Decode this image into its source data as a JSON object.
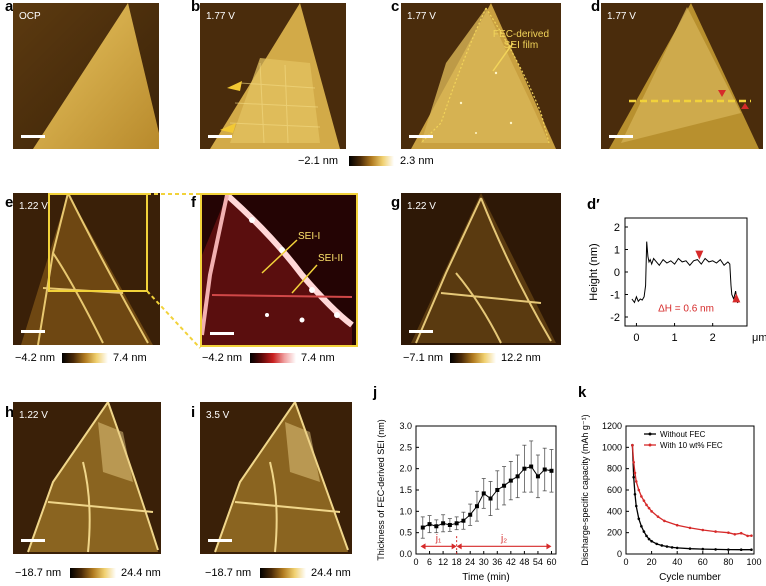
{
  "panels": {
    "a": {
      "letter": "a",
      "label": "OCP"
    },
    "b": {
      "letter": "b",
      "label": "1.77 V"
    },
    "c": {
      "letter": "c",
      "label": "1.77 V",
      "annotation_line1": "FEC-derived",
      "annotation_line2": "SEI film"
    },
    "d": {
      "letter": "d",
      "label": "1.77 V"
    },
    "e": {
      "letter": "e",
      "label": "1.22 V"
    },
    "f": {
      "letter": "f",
      "sei1": "SEI-I",
      "sei2": "SEI-II"
    },
    "g": {
      "letter": "g",
      "label": "1.22 V"
    },
    "dprime": {
      "letter": "d′"
    },
    "h": {
      "letter": "h",
      "label": "1.22 V"
    },
    "i": {
      "letter": "i",
      "label": "3.5 V"
    },
    "j": {
      "letter": "j"
    },
    "k": {
      "letter": "k"
    }
  },
  "colorbars": {
    "top": {
      "min": "−2.1 nm",
      "max": "2.3 nm"
    },
    "e": {
      "min": "−4.2 nm",
      "max": "7.4 nm"
    },
    "f": {
      "min": "−4.2 nm",
      "max": "7.4 nm"
    },
    "g": {
      "min": "−7.1 nm",
      "max": "12.2 nm"
    },
    "h": {
      "min": "−18.7 nm",
      "max": "24.4 nm"
    },
    "i": {
      "min": "−18.7 nm",
      "max": "24.4 nm"
    }
  },
  "chart_data": [
    {
      "id": "dprime",
      "type": "line",
      "title": "",
      "xlabel": "μm",
      "ylabel": "Height (nm)",
      "xlim": [
        -0.3,
        2.9
      ],
      "ylim": [
        -2.4,
        2.4
      ],
      "xticks": [
        0,
        1,
        2
      ],
      "yticks": [
        -2,
        -1,
        0,
        1,
        2
      ],
      "annotation": "ΔH = 0.6 nm",
      "x": [
        -0.12,
        -0.05,
        0.0,
        0.05,
        0.1,
        0.15,
        0.2,
        0.24,
        0.27,
        0.3,
        0.33,
        0.36,
        0.4,
        0.45,
        0.5,
        0.6,
        0.7,
        0.8,
        0.9,
        1.0,
        1.1,
        1.2,
        1.3,
        1.4,
        1.5,
        1.6,
        1.7,
        1.8,
        1.9,
        2.0,
        2.1,
        2.2,
        2.3,
        2.4,
        2.45,
        2.48,
        2.5,
        2.55,
        2.6,
        2.65,
        2.7
      ],
      "y": [
        -1.2,
        -1.35,
        -1.1,
        -1.3,
        -1.2,
        -1.25,
        -1.1,
        -0.6,
        1.35,
        0.7,
        0.45,
        0.55,
        0.35,
        0.6,
        0.5,
        0.3,
        0.55,
        0.4,
        0.5,
        0.35,
        0.6,
        0.45,
        0.5,
        0.3,
        0.5,
        0.55,
        0.35,
        0.6,
        0.45,
        0.5,
        0.4,
        0.55,
        0.3,
        0.45,
        0.35,
        -0.6,
        -1.0,
        -1.2,
        -0.85,
        -1.35,
        -1.3
      ]
    },
    {
      "id": "j",
      "type": "line",
      "xlabel": "Time (min)",
      "ylabel": "Thickness of FEC-derived SEI (nm)",
      "xlim": [
        0,
        62
      ],
      "ylim": [
        0,
        3.0
      ],
      "xticks": [
        0,
        6,
        12,
        18,
        24,
        30,
        36,
        42,
        48,
        54,
        60
      ],
      "yticks": [
        0.0,
        0.5,
        1.0,
        1.5,
        2.0,
        2.5,
        3.0
      ],
      "x": [
        3,
        6,
        9,
        12,
        15,
        18,
        21,
        24,
        27,
        30,
        33,
        36,
        39,
        42,
        45,
        48,
        51,
        54,
        57,
        60
      ],
      "y": [
        0.62,
        0.7,
        0.65,
        0.72,
        0.68,
        0.72,
        0.78,
        0.92,
        1.12,
        1.42,
        1.3,
        1.5,
        1.6,
        1.72,
        1.82,
        2.0,
        2.05,
        1.82,
        1.98,
        1.95
      ],
      "err": [
        0.25,
        0.2,
        0.15,
        0.2,
        0.15,
        0.15,
        0.2,
        0.25,
        0.35,
        0.35,
        0.4,
        0.45,
        0.45,
        0.45,
        0.5,
        0.55,
        0.6,
        0.5,
        0.5,
        0.5
      ],
      "regions": [
        {
          "label": "j₁",
          "from": 2,
          "to": 18
        },
        {
          "label": "j₂",
          "from": 18,
          "to": 60
        }
      ]
    },
    {
      "id": "k",
      "type": "line",
      "xlabel": "Cycle number",
      "ylabel": "Discharge-specific capacity (mAh g⁻¹)",
      "xlim": [
        0,
        100
      ],
      "ylim": [
        0,
        1200
      ],
      "xticks": [
        0,
        20,
        40,
        60,
        80,
        100
      ],
      "yticks": [
        0,
        200,
        400,
        600,
        800,
        1000,
        1200
      ],
      "series": [
        {
          "name": "Without FEC",
          "color": "#000000",
          "x": [
            5,
            6,
            7,
            8,
            10,
            12,
            14,
            16,
            18,
            20,
            24,
            28,
            32,
            36,
            40,
            50,
            60,
            70,
            80,
            90,
            98
          ],
          "y": [
            1020,
            720,
            560,
            450,
            330,
            260,
            210,
            170,
            140,
            120,
            95,
            80,
            70,
            62,
            57,
            50,
            46,
            43,
            41,
            40,
            40
          ]
        },
        {
          "name": "With 10 wt% FEC",
          "color": "#d62a2a",
          "x": [
            5,
            6,
            7,
            8,
            10,
            12,
            14,
            16,
            18,
            20,
            25,
            30,
            40,
            50,
            60,
            70,
            80,
            85,
            90,
            95,
            98
          ],
          "y": [
            1020,
            860,
            760,
            680,
            600,
            540,
            500,
            460,
            430,
            400,
            350,
            310,
            270,
            245,
            225,
            210,
            200,
            185,
            195,
            170,
            172
          ]
        }
      ]
    }
  ]
}
